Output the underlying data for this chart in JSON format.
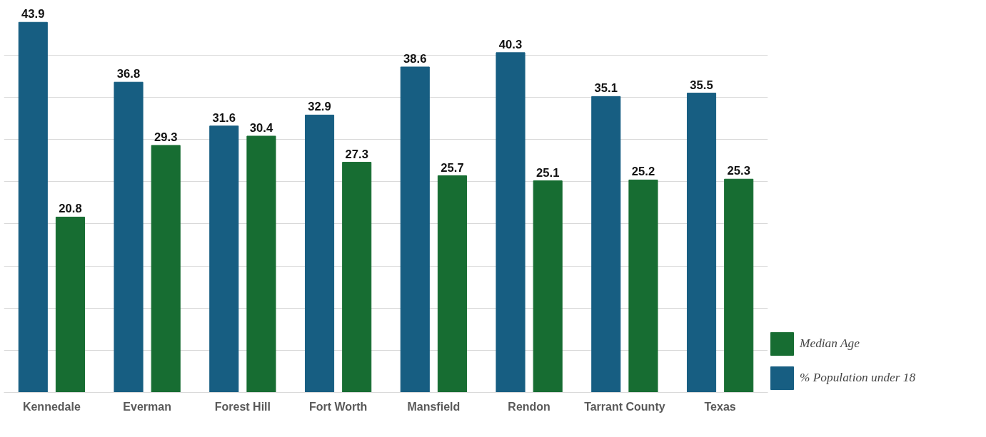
{
  "chart_data": {
    "type": "bar",
    "categories": [
      "Kennedale",
      "Everman",
      "Forest Hill",
      "Fort Worth",
      "Mansfield",
      "Rendon",
      "Tarrant County",
      "Texas"
    ],
    "series": [
      {
        "name": "% Population under 18",
        "color": "#175e82",
        "values": [
          43.9,
          36.8,
          31.6,
          32.9,
          38.6,
          40.3,
          35.1,
          35.5
        ]
      },
      {
        "name": "Median Age",
        "color": "#176d32",
        "values": [
          20.8,
          29.3,
          30.4,
          27.3,
          25.7,
          25.1,
          25.2,
          25.3
        ]
      }
    ],
    "yticks": [
      {
        "value": 0,
        "label": null
      },
      {
        "value": 5,
        "label": null
      },
      {
        "value": 10,
        "label": null
      },
      {
        "value": 15,
        "label": null
      },
      {
        "value": 20,
        "label": null
      },
      {
        "value": 25,
        "label": null
      },
      {
        "value": 30,
        "label": null
      },
      {
        "value": 35,
        "label": null
      },
      {
        "value": 40,
        "label": null
      }
    ],
    "tick_labels": "x",
    "grid": "y",
    "data_labels": true,
    "legend": "bottom right"
  }
}
